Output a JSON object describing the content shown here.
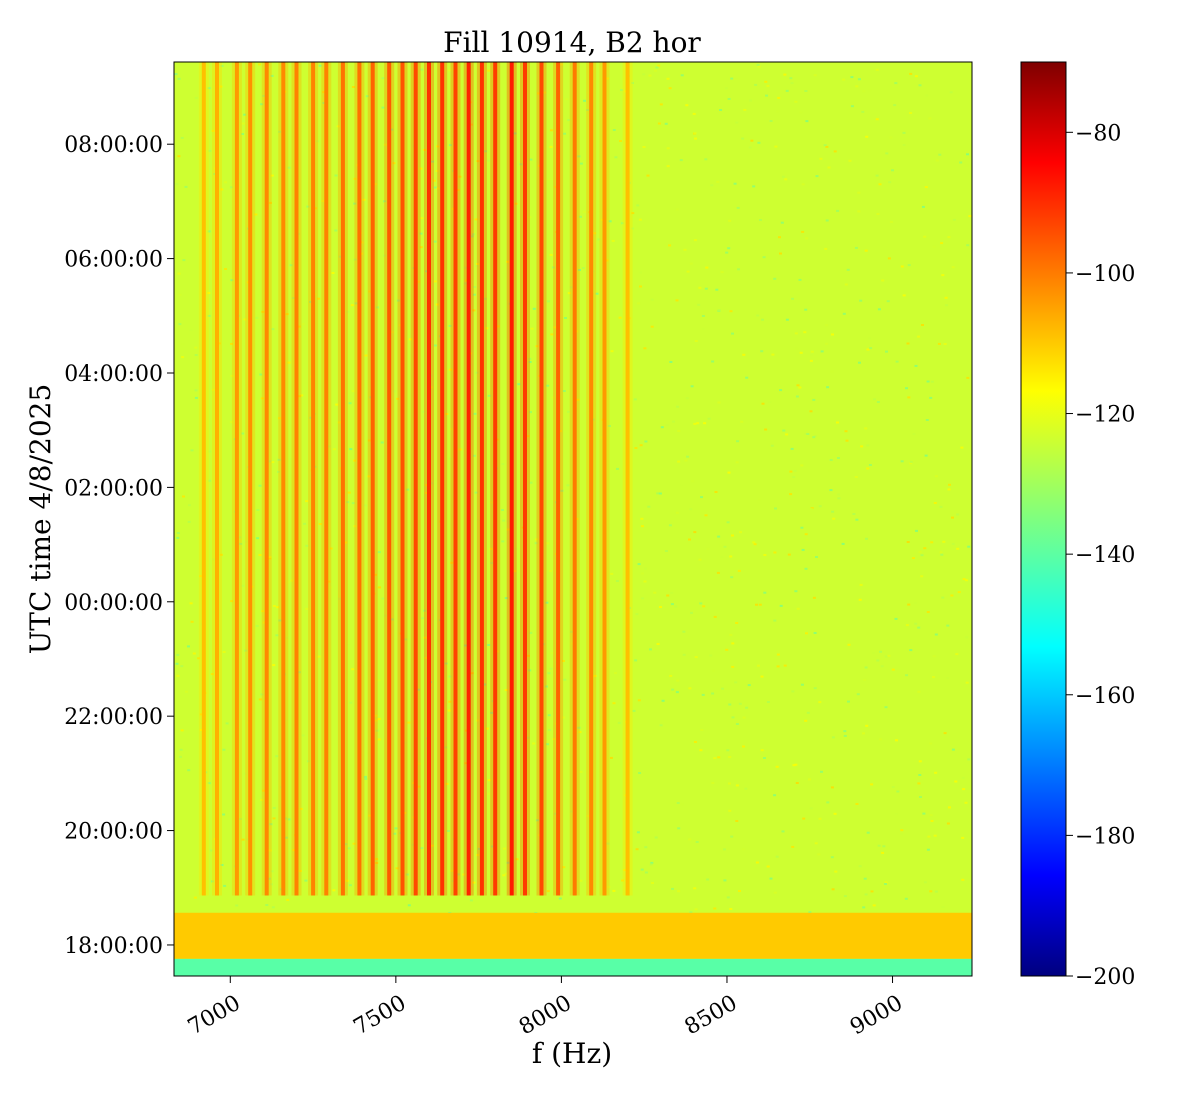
{
  "chart_data": {
    "type": "heatmap",
    "title": "Fill 10914, B2 hor",
    "xlabel": "f (Hz)",
    "ylabel": "UTC time 4/8/2025",
    "xlim": [
      6830,
      9240
    ],
    "x_ticks": [
      {
        "value": 7000,
        "label": "7000"
      },
      {
        "value": 7500,
        "label": "7500"
      },
      {
        "value": 8000,
        "label": "8000"
      },
      {
        "value": 8500,
        "label": "8500"
      },
      {
        "value": 9000,
        "label": "9000"
      }
    ],
    "y_ticks": [
      {
        "value": 17.99,
        "label": "18:00:00"
      },
      {
        "value": 19.98,
        "label": "20:00:00"
      },
      {
        "value": 21.97,
        "label": "22:00:00"
      },
      {
        "value": 23.96,
        "label": "00:00:00"
      },
      {
        "value": 25.95,
        "label": "02:00:00"
      },
      {
        "value": 27.94,
        "label": "04:00:00"
      },
      {
        "value": 29.93,
        "label": "06:00:00"
      },
      {
        "value": 31.92,
        "label": "08:00:00"
      }
    ],
    "ylim": [
      17.45,
      33.35
    ],
    "colorbar": {
      "colormap": "jet",
      "range": [
        -200,
        -70
      ],
      "ticks": [
        -80,
        -100,
        -120,
        -140,
        -160,
        -180,
        -200
      ],
      "tick_labels": [
        "−80",
        "−100",
        "−120",
        "−140",
        "−160",
        "−180",
        "−200"
      ]
    },
    "background_level_db": -125,
    "harmonic_lines": {
      "start_time": 18.85,
      "freq_hz": [
        6920,
        6960,
        7020,
        7060,
        7110,
        7160,
        7200,
        7250,
        7290,
        7340,
        7390,
        7430,
        7480,
        7520,
        7560,
        7600,
        7640,
        7680,
        7720,
        7760,
        7800,
        7850,
        7890,
        7940,
        7990,
        8040,
        8090,
        8130,
        8200
      ],
      "level_db": [
        -108,
        -106,
        -103,
        -102,
        -101,
        -101,
        -100,
        -100,
        -100,
        -98,
        -98,
        -96,
        -95,
        -94,
        -93,
        -90,
        -90,
        -92,
        -88,
        -90,
        -91,
        -87,
        -91,
        -93,
        -96,
        -99,
        -101,
        -103,
        -108
      ]
    },
    "bands": [
      {
        "time_range": [
          17.45,
          17.75
        ],
        "level_db": -140
      },
      {
        "time_range": [
          17.75,
          18.55
        ],
        "freq_range": [
          6830,
          9240
        ],
        "level_db": -112
      }
    ]
  }
}
